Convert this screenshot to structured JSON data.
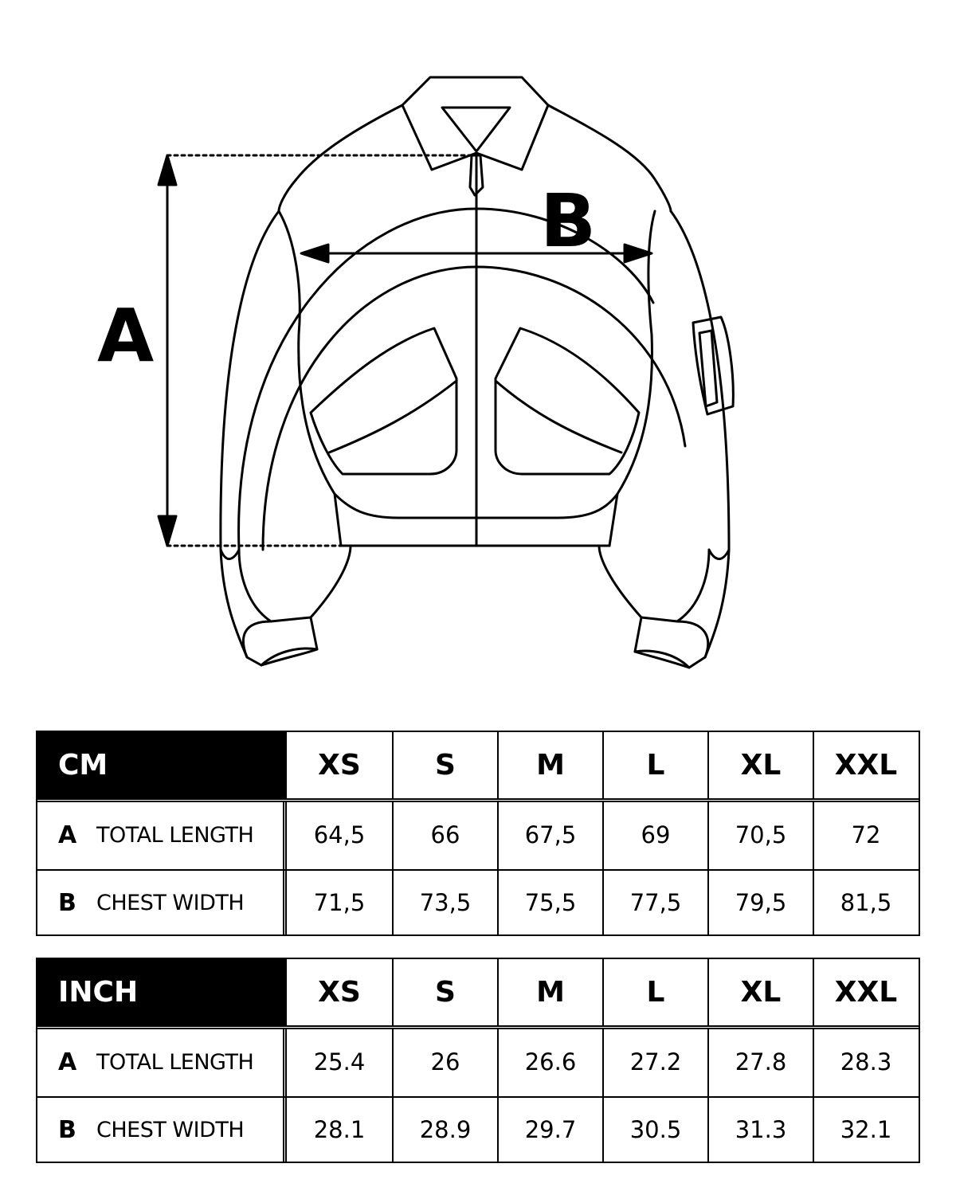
{
  "diagram": {
    "label_a": "A",
    "label_b": "B"
  },
  "sizes": [
    "XS",
    "S",
    "M",
    "L",
    "XL",
    "XXL"
  ],
  "tables": [
    {
      "unit": "CM",
      "rows": [
        {
          "key": "A",
          "name": "TOTAL LENGTH",
          "values": [
            "64,5",
            "66",
            "67,5",
            "69",
            "70,5",
            "72"
          ]
        },
        {
          "key": "B",
          "name": "CHEST WIDTH",
          "values": [
            "71,5",
            "73,5",
            "75,5",
            "77,5",
            "79,5",
            "81,5"
          ]
        }
      ]
    },
    {
      "unit": "INCH",
      "rows": [
        {
          "key": "A",
          "name": "TOTAL LENGTH",
          "values": [
            "25.4",
            "26",
            "26.6",
            "27.2",
            "27.8",
            "28.3"
          ]
        },
        {
          "key": "B",
          "name": "CHEST WIDTH",
          "values": [
            "28.1",
            "28.9",
            "29.7",
            "30.5",
            "31.3",
            "32.1"
          ]
        }
      ]
    }
  ]
}
